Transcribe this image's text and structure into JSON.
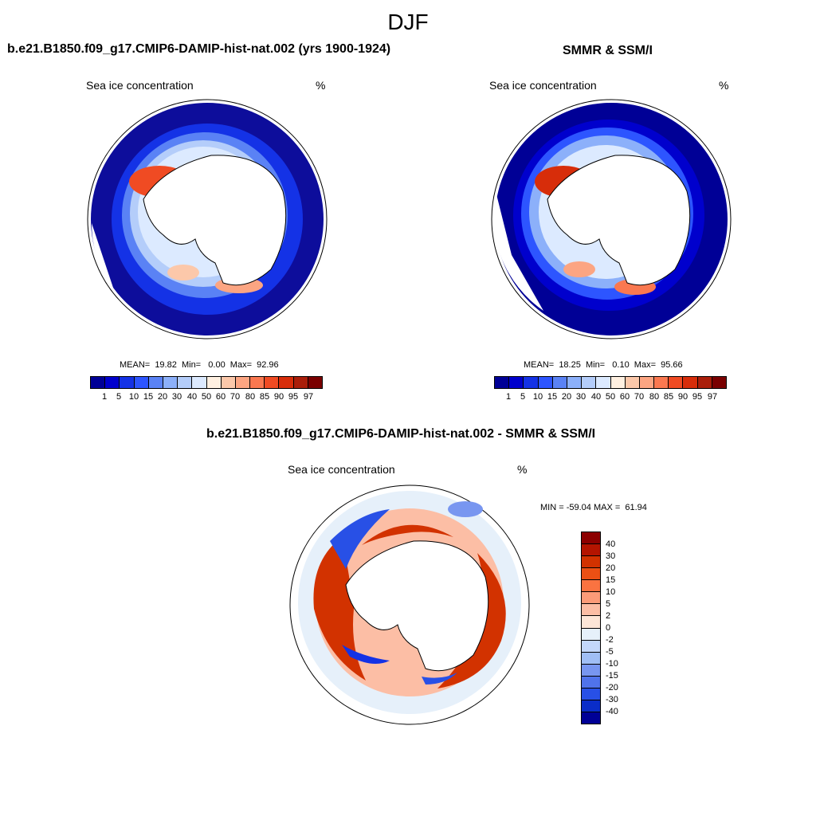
{
  "main_title": "DJF",
  "panels": {
    "model": {
      "title": "b.e21.B1850.f09_g17.CMIP6-DAMIP-hist-nat.002 (yrs 1900-1924)",
      "variable": "Sea ice concentration",
      "units": "%",
      "stats": "MEAN=  19.82  Min=   0.00  Max=  92.96",
      "colorbar_ticks": [
        "1",
        "5",
        "10",
        "15",
        "20",
        "30",
        "40",
        "50",
        "60",
        "70",
        "80",
        "85",
        "90",
        "95",
        "97"
      ],
      "colorbar_colors": [
        "#000096",
        "#0000cd",
        "#1432e6",
        "#2d55ff",
        "#5a82f5",
        "#8cb0fa",
        "#b4cdfa",
        "#dceaff",
        "#fff0e1",
        "#fcc8aa",
        "#fca582",
        "#fa7850",
        "#f04b23",
        "#d72d0a",
        "#aa1e0a",
        "#7a0000"
      ]
    },
    "obs": {
      "title": "SMMR & SSM/I",
      "variable": "Sea ice concentration",
      "units": "%",
      "stats": "MEAN=  18.25  Min=   0.10  Max=  95.66",
      "colorbar_ticks": [
        "1",
        "5",
        "10",
        "15",
        "20",
        "30",
        "40",
        "50",
        "60",
        "70",
        "80",
        "85",
        "90",
        "95",
        "97"
      ]
    },
    "diff": {
      "title": "b.e21.B1850.f09_g17.CMIP6-DAMIP-hist-nat.002 - SMMR & SSM/I",
      "variable": "Sea ice concentration",
      "units": "%",
      "stats": "MIN = -59.04 MAX =  61.94",
      "colorbar_ticks": [
        "40",
        "30",
        "20",
        "15",
        "10",
        "5",
        "2",
        "0",
        "-2",
        "-5",
        "-10",
        "-15",
        "-20",
        "-30",
        "-40"
      ],
      "colorbar_colors": [
        "#8c0000",
        "#b41400",
        "#d23200",
        "#eb5014",
        "#fa7341",
        "#fc9b78",
        "#fcbea5",
        "#fde6d7",
        "#e6f0fa",
        "#c3d7fa",
        "#a0bef5",
        "#7896f0",
        "#5073eb",
        "#2850e6",
        "#0a2dc8",
        "#000096"
      ]
    }
  }
}
